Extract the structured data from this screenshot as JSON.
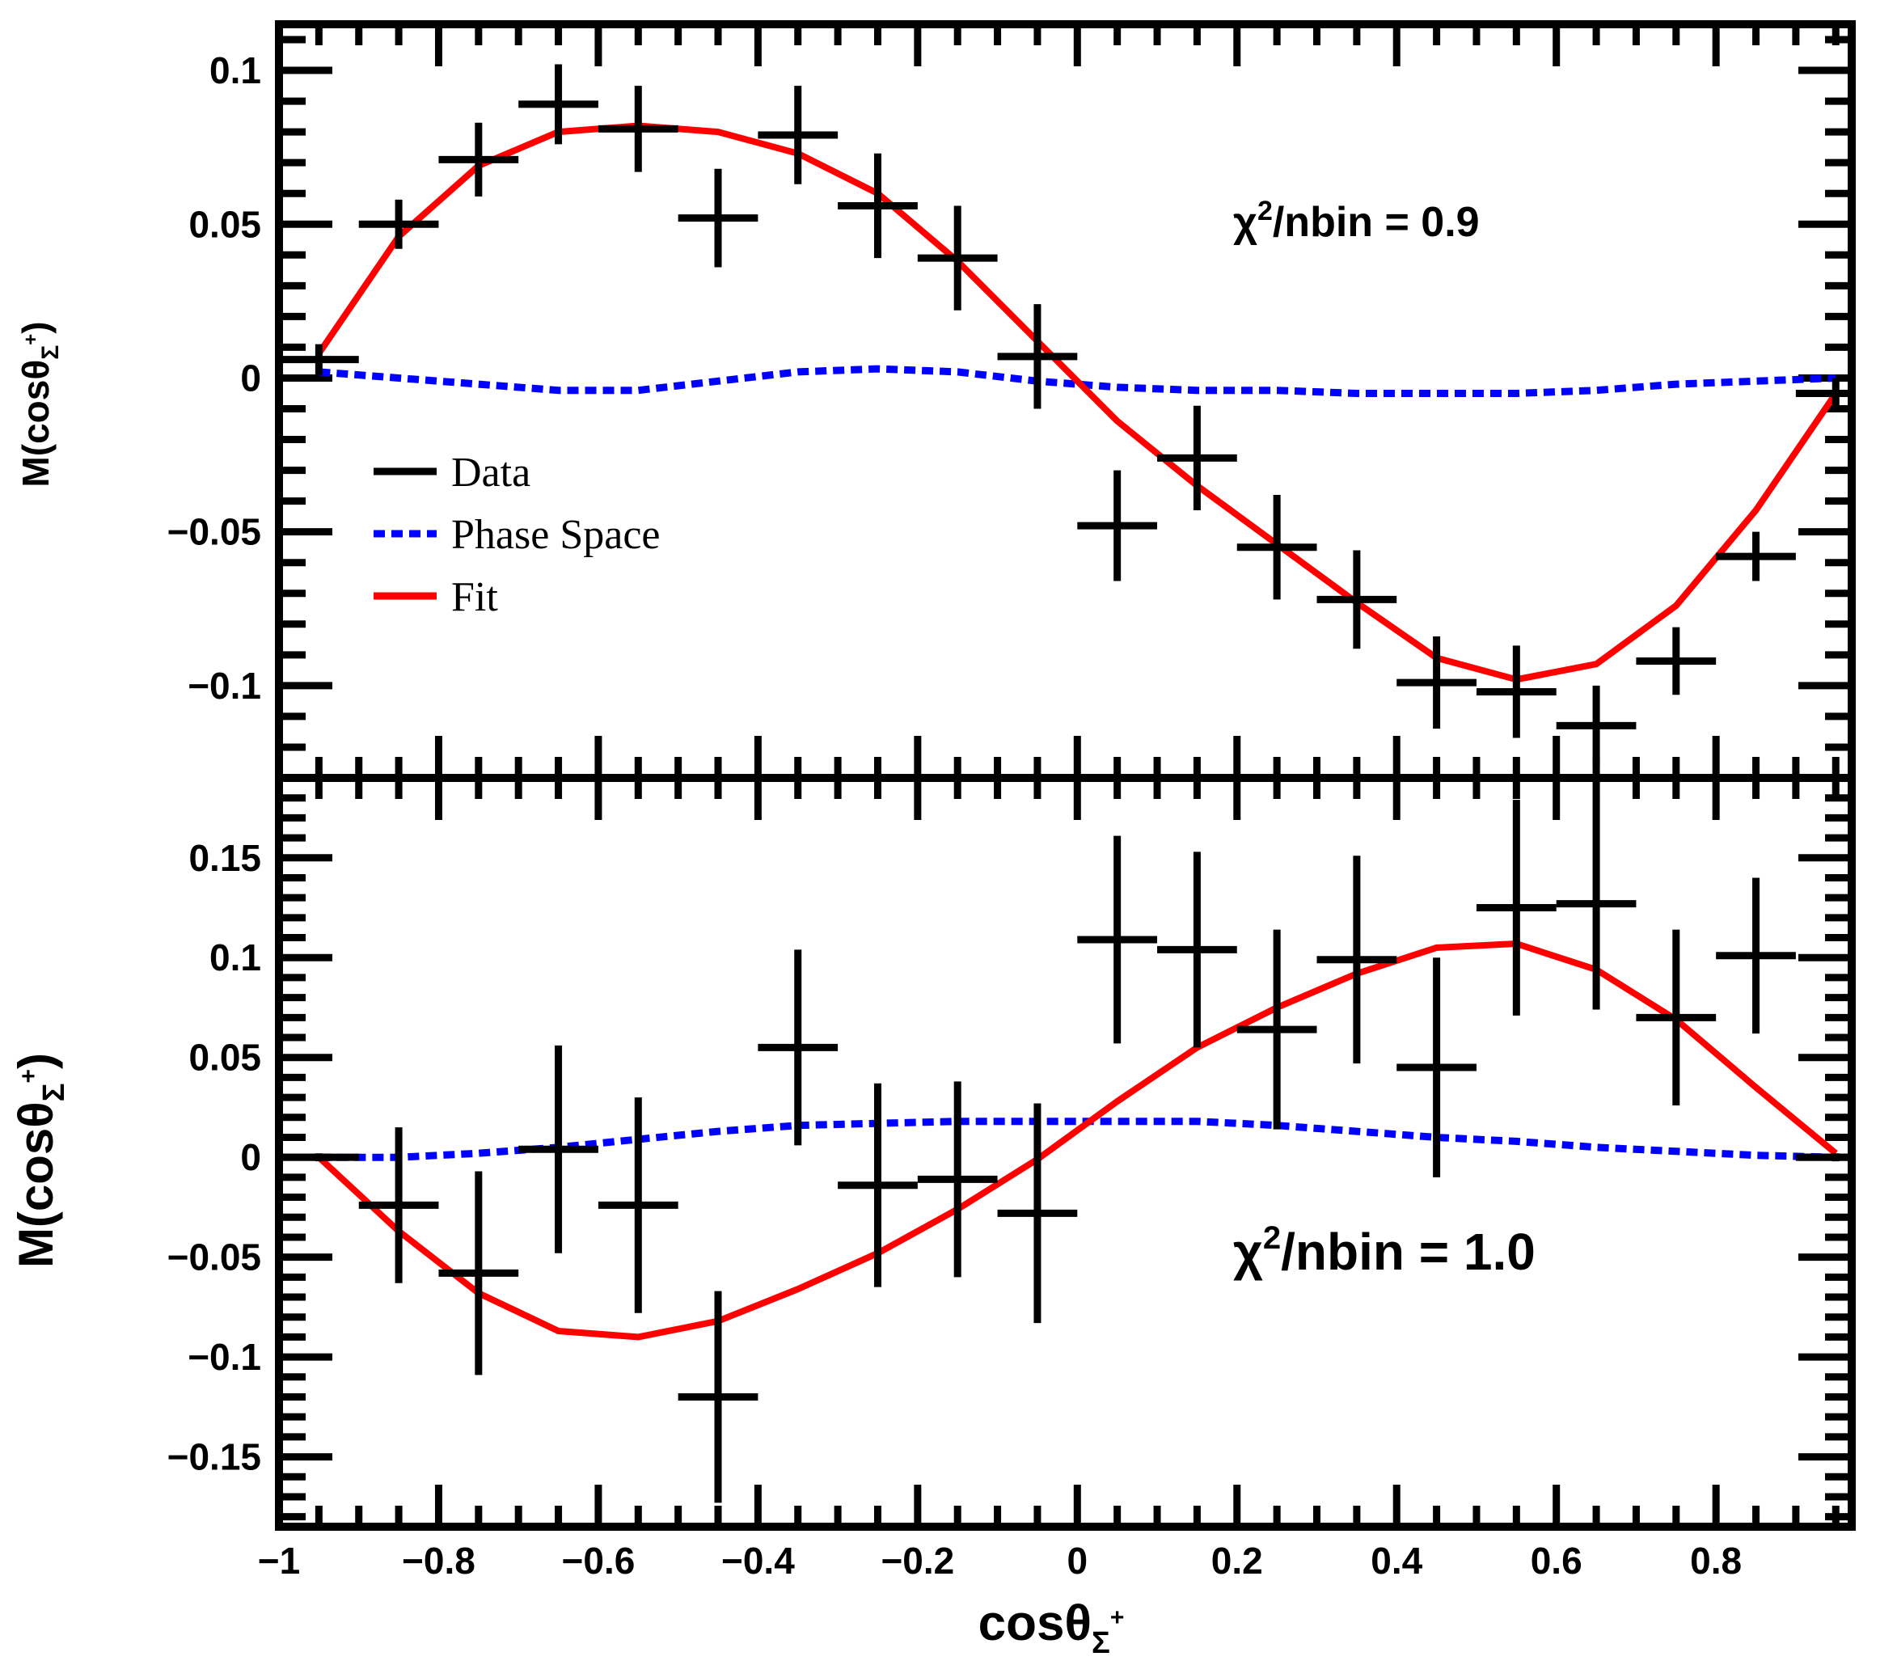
{
  "chart_data": [
    {
      "type": "line",
      "panel": "top",
      "ylabel_main": "M(cosθ",
      "ylabel_sub": "Σ",
      "ylabel_sup": "+",
      "ylabel_close": ")",
      "ylim": [
        -0.13,
        0.115
      ],
      "xlim": [
        -1,
        0.97
      ],
      "y_ticks": [
        0.1,
        0.05,
        0,
        -0.05,
        -0.1
      ],
      "y_tick_labels": [
        "0.1",
        "0.05",
        "0",
        "−0.05",
        "−0.1"
      ],
      "annotation_main": "χ",
      "annotation_sup": "2",
      "annotation_rest": "/nbin = 0.9",
      "series": [
        {
          "name": "Data",
          "kind": "errorbar",
          "color": "#000000",
          "x": [
            -0.95,
            -0.85,
            -0.75,
            -0.65,
            -0.55,
            -0.45,
            -0.35,
            -0.25,
            -0.15,
            -0.05,
            0.05,
            0.15,
            0.25,
            0.35,
            0.45,
            0.55,
            0.65,
            0.75,
            0.85,
            0.95
          ],
          "y": [
            0.006,
            0.05,
            0.071,
            0.089,
            0.081,
            0.052,
            0.079,
            0.056,
            0.039,
            0.007,
            -0.048,
            -0.026,
            -0.055,
            -0.072,
            -0.099,
            -0.102,
            -0.113,
            -0.092,
            -0.058,
            -0.005
          ],
          "yerr": [
            0.005,
            0.008,
            0.012,
            0.013,
            0.014,
            0.016,
            0.016,
            0.017,
            0.017,
            0.017,
            0.018,
            0.017,
            0.017,
            0.016,
            0.015,
            0.015,
            0.013,
            0.011,
            0.008,
            0.005
          ],
          "xerr": 0.05
        },
        {
          "name": "Phase Space",
          "kind": "line",
          "color": "#0000ff",
          "dashed": true,
          "x": [
            -0.95,
            -0.85,
            -0.75,
            -0.65,
            -0.55,
            -0.45,
            -0.35,
            -0.25,
            -0.15,
            -0.05,
            0.05,
            0.15,
            0.25,
            0.35,
            0.45,
            0.55,
            0.65,
            0.75,
            0.85,
            0.95
          ],
          "y": [
            0.002,
            0.0,
            -0.002,
            -0.004,
            -0.004,
            -0.001,
            0.002,
            0.003,
            0.002,
            -0.001,
            -0.003,
            -0.004,
            -0.004,
            -0.005,
            -0.005,
            -0.005,
            -0.004,
            -0.002,
            -0.001,
            0.0
          ]
        },
        {
          "name": "Fit",
          "kind": "line",
          "color": "#ff0000",
          "dashed": false,
          "x": [
            -0.95,
            -0.85,
            -0.75,
            -0.65,
            -0.55,
            -0.45,
            -0.35,
            -0.25,
            -0.15,
            -0.05,
            0.05,
            0.15,
            0.25,
            0.35,
            0.45,
            0.55,
            0.65,
            0.75,
            0.85,
            0.95
          ],
          "y": [
            0.008,
            0.046,
            0.069,
            0.08,
            0.082,
            0.08,
            0.073,
            0.06,
            0.038,
            0.012,
            -0.014,
            -0.035,
            -0.054,
            -0.073,
            -0.091,
            -0.098,
            -0.093,
            -0.074,
            -0.043,
            -0.005
          ]
        }
      ],
      "legend": [
        {
          "label": "Data",
          "color": "#000000",
          "style": "solid"
        },
        {
          "label": "Phase Space",
          "color": "#0000ff",
          "style": "dashed"
        },
        {
          "label": "Fit",
          "color": "#ff0000",
          "style": "solid"
        }
      ]
    },
    {
      "type": "line",
      "panel": "bottom",
      "ylabel_main": "M(cosθ",
      "ylabel_sub": "Σ",
      "ylabel_sup": "+",
      "ylabel_close": ")",
      "ylim": [
        -0.185,
        0.19
      ],
      "xlim": [
        -1,
        0.97
      ],
      "y_ticks": [
        0.15,
        0.1,
        0.05,
        0,
        -0.05,
        -0.1,
        -0.15
      ],
      "y_tick_labels": [
        "0.15",
        "0.1",
        "0.05",
        "0",
        "−0.05",
        "−0.1",
        "−0.15"
      ],
      "x_ticks": [
        -1,
        -0.8,
        -0.6,
        -0.4,
        -0.2,
        0,
        0.2,
        0.4,
        0.6,
        0.8
      ],
      "x_tick_labels": [
        "−1",
        "−0.8",
        "−0.6",
        "−0.4",
        "−0.2",
        "0",
        "0.2",
        "0.4",
        "0.6",
        "0.8"
      ],
      "xlabel_main": "cosθ",
      "xlabel_sub": "Σ",
      "xlabel_sup": "+",
      "annotation_main": "χ",
      "annotation_sup": "2",
      "annotation_rest": "/nbin = 1.0",
      "series": [
        {
          "name": "Data",
          "kind": "errorbar",
          "color": "#000000",
          "x": [
            -0.95,
            -0.85,
            -0.75,
            -0.65,
            -0.55,
            -0.45,
            -0.35,
            -0.25,
            -0.15,
            -0.05,
            0.05,
            0.15,
            0.25,
            0.35,
            0.45,
            0.55,
            0.65,
            0.75,
            0.85,
            0.95
          ],
          "y": [
            0.0,
            -0.024,
            -0.058,
            0.004,
            -0.024,
            -0.12,
            0.055,
            -0.014,
            -0.011,
            -0.028,
            0.109,
            0.104,
            0.064,
            0.099,
            0.045,
            0.125,
            0.127,
            0.07,
            0.101,
            0.0
          ],
          "yerr": [
            0.002,
            0.039,
            0.051,
            0.052,
            0.054,
            0.053,
            0.049,
            0.051,
            0.049,
            0.055,
            0.052,
            0.049,
            0.05,
            0.052,
            0.055,
            0.054,
            0.053,
            0.044,
            0.039,
            0.002
          ],
          "xerr": 0.05
        },
        {
          "name": "Phase Space",
          "kind": "line",
          "color": "#0000ff",
          "dashed": true,
          "x": [
            -0.95,
            -0.85,
            -0.75,
            -0.65,
            -0.55,
            -0.45,
            -0.35,
            -0.25,
            -0.15,
            -0.05,
            0.05,
            0.15,
            0.25,
            0.35,
            0.45,
            0.55,
            0.65,
            0.75,
            0.85,
            0.95
          ],
          "y": [
            0.0,
            0.0,
            0.002,
            0.005,
            0.009,
            0.013,
            0.016,
            0.017,
            0.018,
            0.018,
            0.018,
            0.018,
            0.016,
            0.013,
            0.01,
            0.008,
            0.005,
            0.003,
            0.001,
            0.0
          ]
        },
        {
          "name": "Fit",
          "kind": "line",
          "color": "#ff0000",
          "dashed": false,
          "x": [
            -0.95,
            -0.85,
            -0.75,
            -0.65,
            -0.55,
            -0.45,
            -0.35,
            -0.25,
            -0.15,
            -0.05,
            0.05,
            0.15,
            0.25,
            0.35,
            0.45,
            0.55,
            0.65,
            0.75,
            0.85,
            0.95
          ],
          "y": [
            0.0,
            -0.037,
            -0.068,
            -0.087,
            -0.09,
            -0.082,
            -0.066,
            -0.048,
            -0.026,
            -0.001,
            0.028,
            0.055,
            0.075,
            0.092,
            0.105,
            0.107,
            0.094,
            0.069,
            0.035,
            0.002
          ]
        }
      ]
    }
  ]
}
